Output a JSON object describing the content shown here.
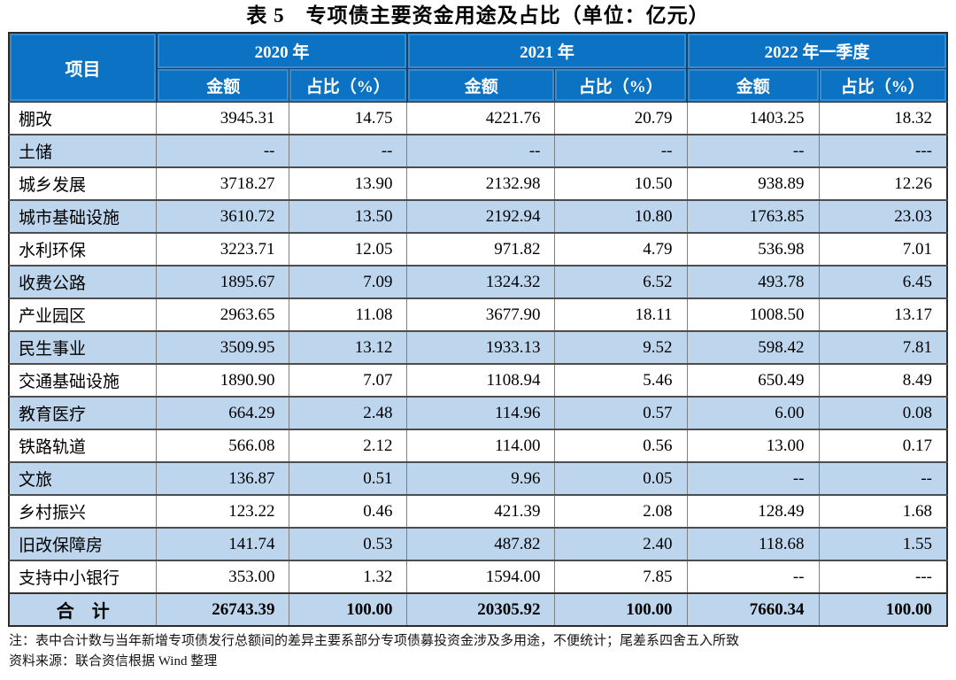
{
  "title": "表 5　专项债主要资金用途及占比（单位：亿元）",
  "table": {
    "item_header": "项目",
    "groups": [
      "2020 年",
      "2021 年",
      "2022 年一季度"
    ],
    "sub_headers": {
      "amount": "金额",
      "share": "占比（%）"
    },
    "rows": [
      {
        "item": "棚改",
        "values": [
          "3945.31",
          "14.75",
          "4221.76",
          "20.79",
          "1403.25",
          "18.32"
        ]
      },
      {
        "item": "土储",
        "values": [
          "--",
          "--",
          "--",
          "--",
          "--",
          "---"
        ]
      },
      {
        "item": "城乡发展",
        "values": [
          "3718.27",
          "13.90",
          "2132.98",
          "10.50",
          "938.89",
          "12.26"
        ]
      },
      {
        "item": "城市基础设施",
        "values": [
          "3610.72",
          "13.50",
          "2192.94",
          "10.80",
          "1763.85",
          "23.03"
        ]
      },
      {
        "item": "水利环保",
        "values": [
          "3223.71",
          "12.05",
          "971.82",
          "4.79",
          "536.98",
          "7.01"
        ]
      },
      {
        "item": "收费公路",
        "values": [
          "1895.67",
          "7.09",
          "1324.32",
          "6.52",
          "493.78",
          "6.45"
        ]
      },
      {
        "item": "产业园区",
        "values": [
          "2963.65",
          "11.08",
          "3677.90",
          "18.11",
          "1008.50",
          "13.17"
        ]
      },
      {
        "item": "民生事业",
        "values": [
          "3509.95",
          "13.12",
          "1933.13",
          "9.52",
          "598.42",
          "7.81"
        ]
      },
      {
        "item": "交通基础设施",
        "values": [
          "1890.90",
          "7.07",
          "1108.94",
          "5.46",
          "650.49",
          "8.49"
        ]
      },
      {
        "item": "教育医疗",
        "values": [
          "664.29",
          "2.48",
          "114.96",
          "0.57",
          "6.00",
          "0.08"
        ]
      },
      {
        "item": "铁路轨道",
        "values": [
          "566.08",
          "2.12",
          "114.00",
          "0.56",
          "13.00",
          "0.17"
        ]
      },
      {
        "item": "文旅",
        "values": [
          "136.87",
          "0.51",
          "9.96",
          "0.05",
          "--",
          "--"
        ]
      },
      {
        "item": "乡村振兴",
        "values": [
          "123.22",
          "0.46",
          "421.39",
          "2.08",
          "128.49",
          "1.68"
        ]
      },
      {
        "item": "旧改保障房",
        "values": [
          "141.74",
          "0.53",
          "487.82",
          "2.40",
          "118.68",
          "1.55"
        ]
      },
      {
        "item": "支持中小银行",
        "values": [
          "353.00",
          "1.32",
          "1594.00",
          "7.85",
          "--",
          "---"
        ]
      }
    ],
    "total": {
      "item": "合　计",
      "values": [
        "26743.39",
        "100.00",
        "20305.92",
        "100.00",
        "7660.34",
        "100.00"
      ]
    }
  },
  "notes": [
    "注：表中合计数与当年新增专项债发行总额间的差异主要系部分专项债募投资金涉及多用途，不便统计；尾差系四舍五入所致",
    "资料来源：联合资信根据 Wind 整理"
  ],
  "colors": {
    "header_bg": "#0b72c4",
    "header_text": "#ffffff",
    "stripe_bg": "#bdd6ee",
    "row_bg": "#ffffff",
    "grid_line": "#4d4d4d"
  }
}
